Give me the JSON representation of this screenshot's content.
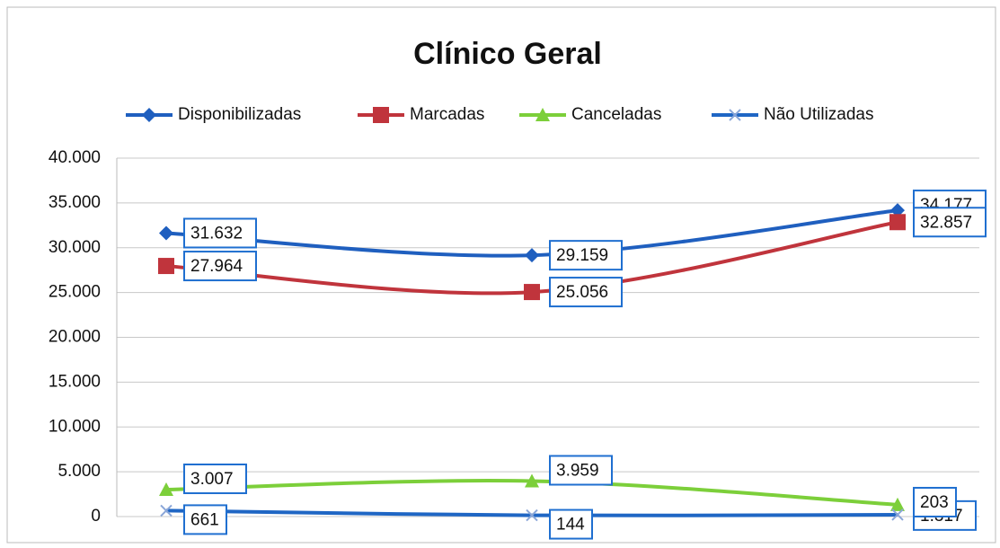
{
  "chart_data": {
    "type": "line",
    "title": "Clínico Geral",
    "categories": [
      null,
      null,
      null
    ],
    "ylim": [
      0,
      40000
    ],
    "yticks": [
      0,
      {
        "value": 5000,
        "label": "5.000"
      },
      {
        "value": 10000,
        "label": "10.000"
      },
      {
        "value": 15000,
        "label": "15.000"
      },
      {
        "value": 20000,
        "label": "20.000"
      },
      {
        "value": 25000,
        "label": "25.000"
      },
      {
        "value": 30000,
        "label": "30.000"
      },
      {
        "value": 35000,
        "label": "35.000"
      },
      {
        "value": 40000,
        "label": "40.000"
      }
    ],
    "grid": true,
    "legend": "top",
    "smooth": true,
    "series": [
      {
        "name": "Disponibilizadas",
        "color": "#1f5fbf",
        "marker": "diamond",
        "values": [
          31632,
          29159,
          34177
        ],
        "value_labels": [
          "31.632",
          "29.159",
          "34.177"
        ]
      },
      {
        "name": "Marcadas",
        "color": "#c0343c",
        "marker": "square",
        "values": [
          27964,
          25056,
          32857
        ],
        "value_labels": [
          "27.964",
          "25.056",
          "32.857"
        ]
      },
      {
        "name": "Canceladas",
        "color": "#7ccf3a",
        "marker": "triangle",
        "values": [
          3007,
          3959,
          1317
        ],
        "value_labels": [
          "3.007",
          "3.959",
          "1.317"
        ]
      },
      {
        "name": "Não Utilizadas",
        "color": "#1f66c4",
        "marker": "x",
        "values": [
          661,
          144,
          203
        ],
        "value_labels": [
          "661",
          "144",
          "203"
        ]
      }
    ]
  }
}
